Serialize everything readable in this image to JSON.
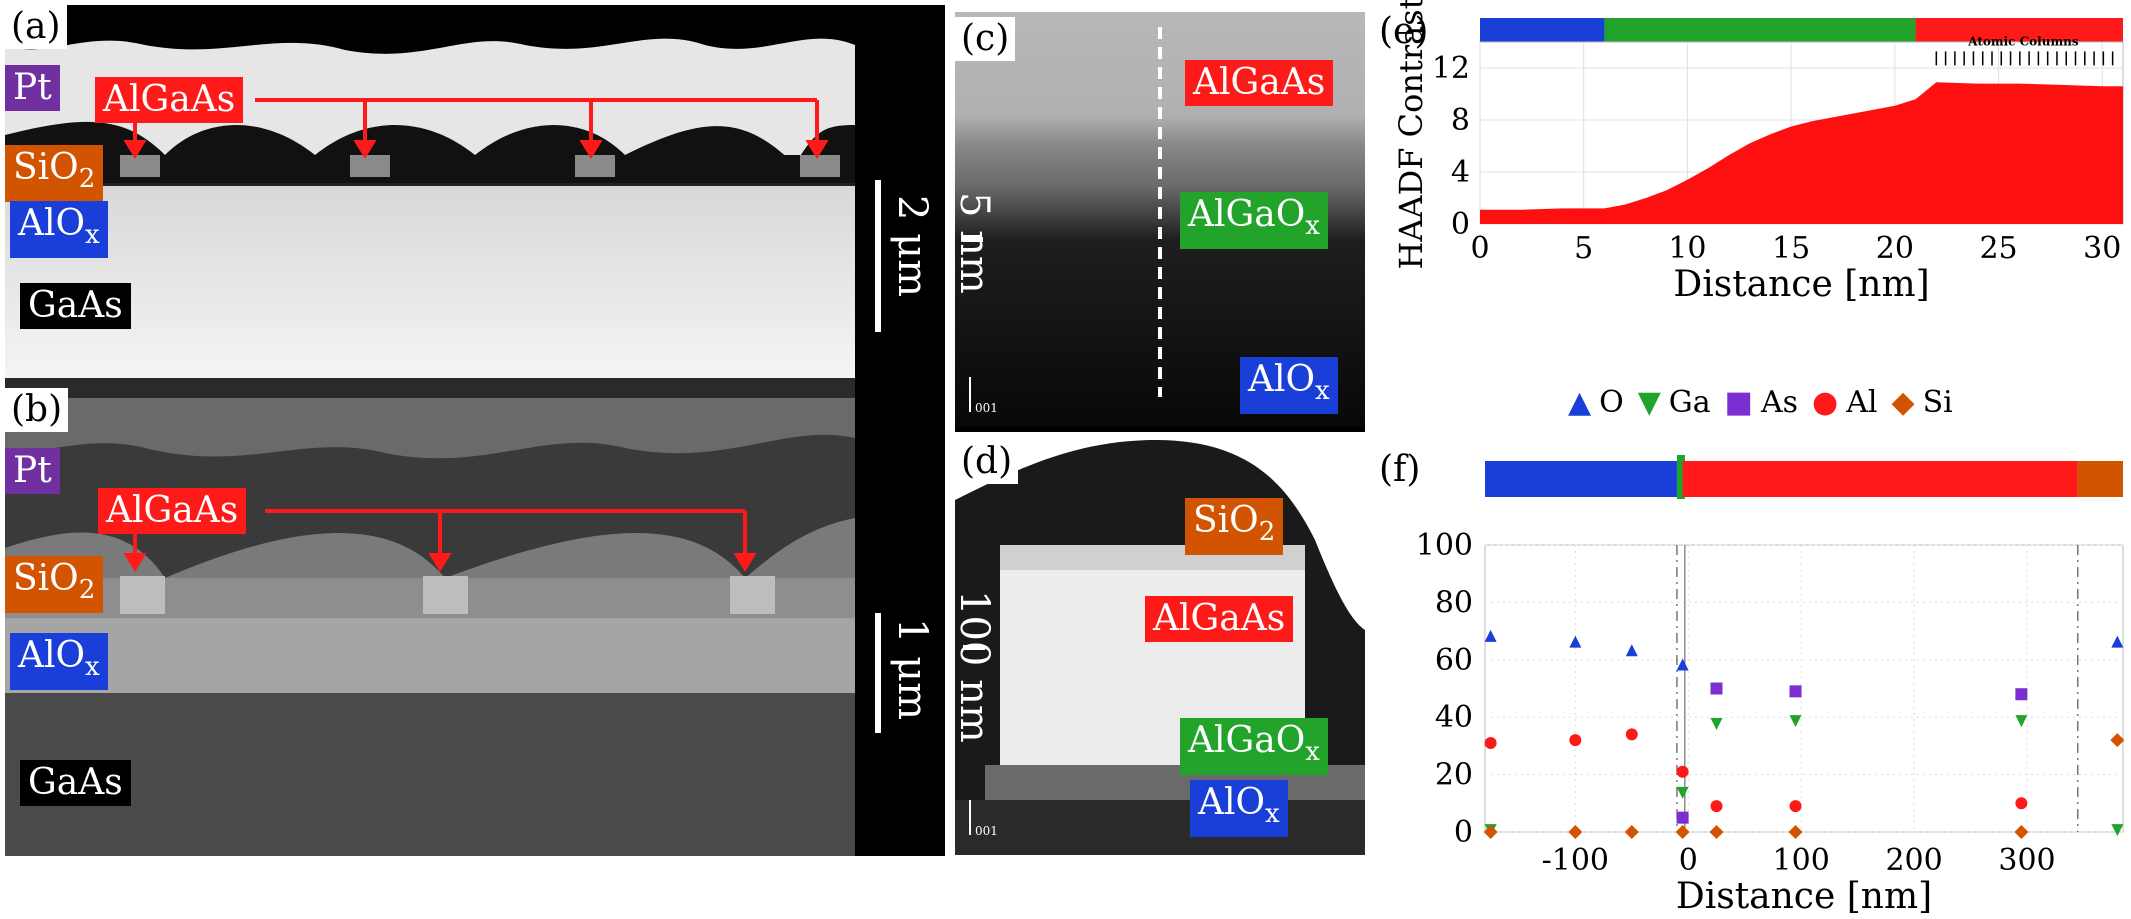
{
  "panels": {
    "a": "(a)",
    "b": "(b)",
    "c": "(c)",
    "d": "(d)",
    "e": "(e)",
    "f": "(f)"
  },
  "layers": {
    "pt": "Pt",
    "algaas": "AlGaAs",
    "sio2_base": "SiO",
    "sio2_sub": "2",
    "alox_base": "AlO",
    "alox_sub": "x",
    "gaas": "GaAs",
    "algaox_base": "AlGaO",
    "algaox_sub": "x"
  },
  "scalebars": {
    "a": "2 μm",
    "b": "1 μm",
    "c": "5 nm",
    "d": "100 nm"
  },
  "zone_axis": "001",
  "colors": {
    "o": "#1a3fd8",
    "ga": "#22a32a",
    "as": "#7b2fd0",
    "al": "#ff1a1a",
    "si": "#d35400"
  },
  "chart_data": [
    {
      "type": "area",
      "ylabel": "HAADF Contrast",
      "xlabel": "Distance [nm]",
      "annotation": "Atomic Columns",
      "xlim": [
        0,
        31
      ],
      "ylim": [
        0,
        14
      ],
      "xticks": [
        0,
        5,
        10,
        15,
        20,
        25,
        30
      ],
      "yticks": [
        0,
        4,
        8,
        12
      ],
      "x": [
        0,
        2,
        4,
        6,
        7,
        8,
        9,
        10,
        11,
        12,
        13,
        14,
        15,
        16,
        17,
        18,
        19,
        20,
        21,
        22,
        24,
        26,
        28,
        30,
        31
      ],
      "y": [
        1.1,
        1.1,
        1.2,
        1.2,
        1.5,
        2.0,
        2.6,
        3.4,
        4.3,
        5.3,
        6.2,
        6.9,
        7.5,
        7.9,
        8.2,
        8.5,
        8.8,
        9.1,
        9.6,
        10.9,
        10.8,
        10.8,
        10.7,
        10.6,
        10.6
      ],
      "bands": [
        {
          "from": 0,
          "to": 6,
          "color": "#1a3fd8"
        },
        {
          "from": 6,
          "to": 21,
          "color": "#22a32a"
        },
        {
          "from": 21,
          "to": 31,
          "color": "#ff1a1a"
        }
      ]
    },
    {
      "type": "scatter",
      "xlabel": "Distance [nm]",
      "xlim": [
        -180,
        385
      ],
      "ylim": [
        0,
        100
      ],
      "xticks": [
        -100,
        0,
        100,
        200,
        300
      ],
      "yticks": [
        0,
        20,
        40,
        60,
        80,
        100
      ],
      "legend": [
        "O",
        "Ga",
        "As",
        "Al",
        "Si"
      ],
      "series": [
        {
          "name": "O",
          "x": [
            -175,
            -100,
            -50,
            -5,
            380
          ],
          "y": [
            68,
            66,
            63,
            58,
            66
          ]
        },
        {
          "name": "Ga",
          "x": [
            -175,
            -5,
            25,
            95,
            295,
            380
          ],
          "y": [
            1,
            14,
            38,
            39,
            39,
            1
          ]
        },
        {
          "name": "As",
          "x": [
            -5,
            25,
            95,
            295
          ],
          "y": [
            5,
            50,
            49,
            48
          ]
        },
        {
          "name": "Al",
          "x": [
            -175,
            -100,
            -50,
            -5,
            25,
            95,
            295
          ],
          "y": [
            31,
            32,
            34,
            21,
            9,
            9,
            10
          ]
        },
        {
          "name": "Si",
          "x": [
            -175,
            -100,
            -50,
            -5,
            25,
            95,
            295,
            380
          ],
          "y": [
            0,
            0,
            0,
            0,
            0,
            0,
            0,
            32
          ]
        }
      ],
      "bands": [
        {
          "from": -180,
          "to": -10,
          "color": "#1a3fd8"
        },
        {
          "from": -10,
          "to": -5,
          "color": "#22a32a"
        },
        {
          "from": -5,
          "to": 345,
          "color": "#ff1a1a"
        },
        {
          "from": 345,
          "to": 385,
          "color": "#d35400"
        }
      ]
    }
  ]
}
